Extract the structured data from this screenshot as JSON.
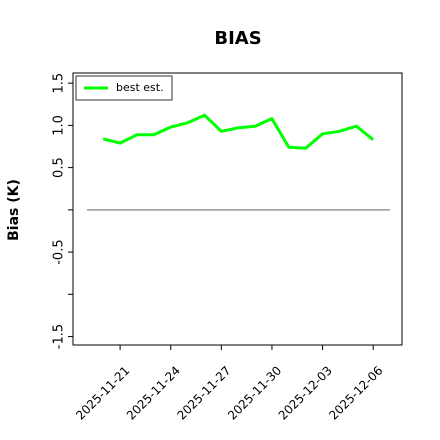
{
  "chart_data": {
    "type": "line",
    "title": "BIAS",
    "ylabel": "Bias (K)",
    "x": [
      "2025-11-20",
      "2025-11-21",
      "2025-11-22",
      "2025-11-23",
      "2025-11-24",
      "2025-11-25",
      "2025-11-26",
      "2025-11-27",
      "2025-11-28",
      "2025-11-29",
      "2025-11-30",
      "2025-12-01",
      "2025-12-02",
      "2025-12-03",
      "2025-12-04",
      "2025-12-05",
      "2025-12-06"
    ],
    "series": [
      {
        "name": "best est.",
        "color": "#00ff00",
        "values": [
          0.84,
          0.79,
          0.89,
          0.89,
          0.98,
          1.03,
          1.12,
          0.93,
          0.97,
          0.99,
          1.08,
          0.74,
          0.73,
          0.9,
          0.93,
          0.99,
          0.83
        ]
      }
    ],
    "xlim": [
      "2025-11-18T05:00",
      "2025-12-07T17:00"
    ],
    "xticks": [
      "2025-11-21",
      "2025-11-24",
      "2025-11-27",
      "2025-11-30",
      "2025-12-03",
      "2025-12-06"
    ],
    "ylim": [
      -1.6,
      1.62
    ],
    "yticks": [
      {
        "value": -1.5,
        "label": "-1.5"
      },
      {
        "value": -1.0,
        "label": null
      },
      {
        "value": -0.5,
        "label": "-0.5"
      },
      {
        "value": 0,
        "label": null
      },
      {
        "value": 0.5,
        "label": "0.5"
      },
      {
        "value": 1.0,
        "label": "1.0"
      },
      {
        "value": 1.5,
        "label": "1.5"
      }
    ],
    "hline": 0,
    "hline_color": "#808080",
    "legend": "upper left",
    "grid": false
  }
}
